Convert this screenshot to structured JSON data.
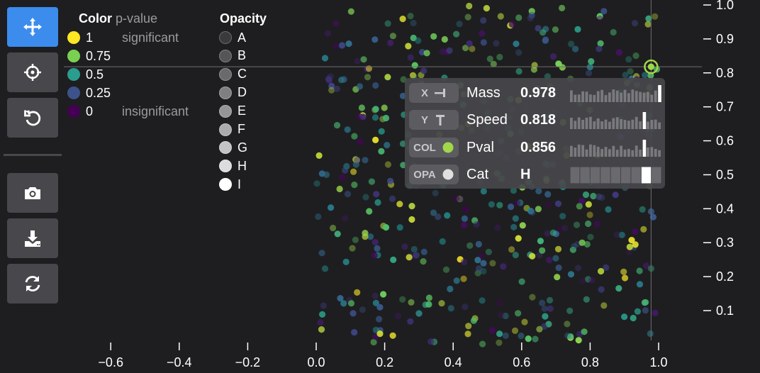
{
  "toolbar": {
    "buttons": [
      {
        "name": "pan-button",
        "icon": "move-arrows-icon",
        "active": true
      },
      {
        "name": "select-button",
        "icon": "crosshair-icon",
        "active": false
      },
      {
        "name": "reset-button",
        "icon": "undo-icon",
        "active": false
      },
      {
        "name": "screenshot-button",
        "icon": "camera-icon",
        "active": false
      },
      {
        "name": "download-button",
        "icon": "download-icon",
        "active": false
      },
      {
        "name": "refresh-button",
        "icon": "refresh-icon",
        "active": false
      }
    ]
  },
  "color_legend": {
    "title": "Color",
    "subtitle": "p-value",
    "items": [
      {
        "label": "1",
        "color": "#fde725"
      },
      {
        "label": "0.75",
        "color": "#7ad151"
      },
      {
        "label": "0.5",
        "color": "#2a9d8f"
      },
      {
        "label": "0.25",
        "color": "#3b528b"
      },
      {
        "label": "0",
        "color": "#440154"
      }
    ],
    "high_note": "significant",
    "low_note": "insignificant"
  },
  "opacity_legend": {
    "title": "Opacity",
    "items": [
      {
        "label": "A",
        "color": "#3a3a3d"
      },
      {
        "label": "B",
        "color": "#555558"
      },
      {
        "label": "C",
        "color": "#6a6a6d"
      },
      {
        "label": "D",
        "color": "#7f7f82"
      },
      {
        "label": "E",
        "color": "#959598"
      },
      {
        "label": "F",
        "color": "#ababae"
      },
      {
        "label": "G",
        "color": "#c3c3c5"
      },
      {
        "label": "H",
        "color": "#dcdcde"
      },
      {
        "label": "I",
        "color": "#ffffff"
      }
    ]
  },
  "tooltip": {
    "rows": [
      {
        "chip": "X",
        "chip_icon": "x-axis-icon",
        "label": "Mass",
        "value": "0.978"
      },
      {
        "chip": "Y",
        "chip_icon": "y-axis-icon",
        "label": "Speed",
        "value": "0.818"
      },
      {
        "chip": "COL",
        "chip_icon": "color-dot-icon",
        "chip_color": "#a0d84a",
        "label": "Pval",
        "value": "0.856"
      },
      {
        "chip": "OPA",
        "chip_icon": "opacity-dot-icon",
        "chip_color": "#e0e0e0",
        "label": "Cat",
        "value": "H"
      }
    ]
  },
  "chart_data": {
    "type": "scatter",
    "title": "",
    "xlabel": "",
    "ylabel": "",
    "xlim": [
      -0.72,
      1.12
    ],
    "ylim": [
      -0.02,
      1.02
    ],
    "x_ticks": [
      "−0.6",
      "−0.4",
      "−0.2",
      "0.0",
      "0.2",
      "0.4",
      "0.6",
      "0.8",
      "1.0"
    ],
    "x_tick_values": [
      -0.6,
      -0.4,
      -0.2,
      0.0,
      0.2,
      0.4,
      0.6,
      0.8,
      1.0
    ],
    "y_ticks": [
      "0.1",
      "0.2",
      "0.3",
      "0.4",
      "0.5",
      "0.6",
      "0.7",
      "0.8",
      "0.9",
      "1.0"
    ],
    "y_tick_values": [
      0.1,
      0.2,
      0.3,
      0.4,
      0.5,
      0.6,
      0.7,
      0.8,
      0.9,
      1.0
    ],
    "x_range_of_points": [
      0.0,
      1.0
    ],
    "y_range_of_points": [
      0.0,
      1.0
    ],
    "point_count_approx": 500,
    "colormap": "viridis",
    "highlighted_point": {
      "x": 0.978,
      "y": 0.818,
      "pval": 0.856,
      "cat": "H"
    },
    "grid": false,
    "legend_position": "top-left"
  }
}
